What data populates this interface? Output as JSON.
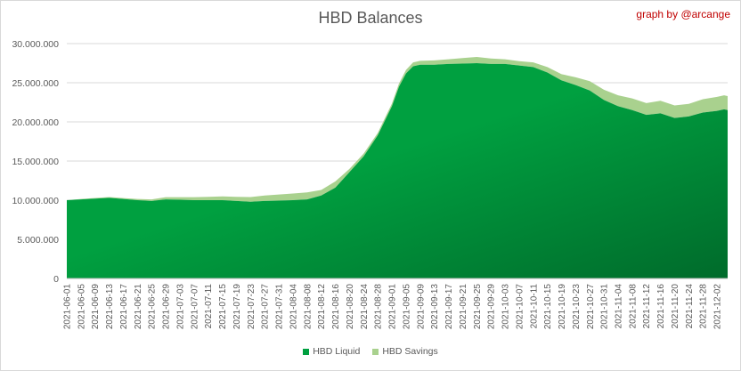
{
  "chart_data": {
    "type": "area",
    "stacked": true,
    "title": "HBD Balances",
    "watermark": "graph by @arcange",
    "ylim": [
      0,
      30000000
    ],
    "y_ticks": [
      0,
      5000000,
      10000000,
      15000000,
      20000000,
      25000000,
      30000000
    ],
    "y_tick_labels": [
      "0",
      "5.000.000",
      "10.000.000",
      "15.000.000",
      "20.000.000",
      "25.000.000",
      "30.000.000"
    ],
    "x_start": "2021-06-01",
    "x_end": "2021-12-05",
    "x_tick_labels": [
      "2021-06-01",
      "2021-06-05",
      "2021-06-09",
      "2021-06-13",
      "2021-06-17",
      "2021-06-21",
      "2021-06-25",
      "2021-06-29",
      "2021-07-03",
      "2021-07-07",
      "2021-07-11",
      "2021-07-15",
      "2021-07-19",
      "2021-07-23",
      "2021-07-27",
      "2021-07-31",
      "2021-08-04",
      "2021-08-08",
      "2021-08-12",
      "2021-08-16",
      "2021-08-20",
      "2021-08-24",
      "2021-08-28",
      "2021-09-01",
      "2021-09-05",
      "2021-09-09",
      "2021-09-13",
      "2021-09-17",
      "2021-09-21",
      "2021-09-25",
      "2021-09-29",
      "2021-10-03",
      "2021-10-07",
      "2021-10-11",
      "2021-10-15",
      "2021-10-19",
      "2021-10-23",
      "2021-10-27",
      "2021-10-31",
      "2021-11-04",
      "2021-11-08",
      "2021-11-12",
      "2021-11-16",
      "2021-11-20",
      "2021-11-24",
      "2021-11-28",
      "2021-12-02"
    ],
    "legend_position": "bottom",
    "grid": true,
    "series": [
      {
        "name": "HBD Liquid",
        "color": "#00a040",
        "color_dark": "#006b2b",
        "points": [
          [
            "2021-06-01",
            10000000
          ],
          [
            "2021-06-05",
            10100000
          ],
          [
            "2021-06-09",
            10200000
          ],
          [
            "2021-06-13",
            10300000
          ],
          [
            "2021-06-17",
            10150000
          ],
          [
            "2021-06-21",
            10000000
          ],
          [
            "2021-06-25",
            9900000
          ],
          [
            "2021-06-29",
            10100000
          ],
          [
            "2021-07-03",
            10050000
          ],
          [
            "2021-07-07",
            10000000
          ],
          [
            "2021-07-11",
            10000000
          ],
          [
            "2021-07-15",
            10000000
          ],
          [
            "2021-07-19",
            9900000
          ],
          [
            "2021-07-23",
            9800000
          ],
          [
            "2021-07-27",
            9900000
          ],
          [
            "2021-07-31",
            9950000
          ],
          [
            "2021-08-04",
            10000000
          ],
          [
            "2021-08-08",
            10100000
          ],
          [
            "2021-08-12",
            10600000
          ],
          [
            "2021-08-16",
            11600000
          ],
          [
            "2021-08-20",
            13600000
          ],
          [
            "2021-08-24",
            15600000
          ],
          [
            "2021-08-28",
            18300000
          ],
          [
            "2021-09-01",
            22000000
          ],
          [
            "2021-09-03",
            24500000
          ],
          [
            "2021-09-05",
            26200000
          ],
          [
            "2021-09-07",
            27100000
          ],
          [
            "2021-09-09",
            27300000
          ],
          [
            "2021-09-13",
            27300000
          ],
          [
            "2021-09-17",
            27400000
          ],
          [
            "2021-09-21",
            27450000
          ],
          [
            "2021-09-25",
            27500000
          ],
          [
            "2021-09-29",
            27400000
          ],
          [
            "2021-10-03",
            27400000
          ],
          [
            "2021-10-07",
            27200000
          ],
          [
            "2021-10-11",
            27000000
          ],
          [
            "2021-10-15",
            26300000
          ],
          [
            "2021-10-19",
            25300000
          ],
          [
            "2021-10-23",
            24700000
          ],
          [
            "2021-10-27",
            24000000
          ],
          [
            "2021-10-31",
            22800000
          ],
          [
            "2021-11-04",
            22000000
          ],
          [
            "2021-11-08",
            21500000
          ],
          [
            "2021-11-12",
            20900000
          ],
          [
            "2021-11-16",
            21100000
          ],
          [
            "2021-11-20",
            20500000
          ],
          [
            "2021-11-24",
            20700000
          ],
          [
            "2021-11-28",
            21200000
          ],
          [
            "2021-12-02",
            21400000
          ],
          [
            "2021-12-04",
            21600000
          ],
          [
            "2021-12-05",
            21500000
          ]
        ]
      },
      {
        "name": "HBD Savings",
        "color": "#a9d18e",
        "points": [
          [
            "2021-06-01",
            0
          ],
          [
            "2021-06-05",
            50000
          ],
          [
            "2021-06-09",
            80000
          ],
          [
            "2021-06-13",
            100000
          ],
          [
            "2021-06-17",
            120000
          ],
          [
            "2021-06-21",
            150000
          ],
          [
            "2021-06-25",
            200000
          ],
          [
            "2021-06-29",
            280000
          ],
          [
            "2021-07-03",
            330000
          ],
          [
            "2021-07-07",
            380000
          ],
          [
            "2021-07-11",
            430000
          ],
          [
            "2021-07-15",
            480000
          ],
          [
            "2021-07-19",
            530000
          ],
          [
            "2021-07-23",
            600000
          ],
          [
            "2021-07-27",
            700000
          ],
          [
            "2021-07-31",
            780000
          ],
          [
            "2021-08-04",
            850000
          ],
          [
            "2021-08-08",
            900000
          ],
          [
            "2021-08-12",
            700000
          ],
          [
            "2021-08-16",
            800000
          ],
          [
            "2021-08-20",
            400000
          ],
          [
            "2021-08-24",
            350000
          ],
          [
            "2021-08-28",
            300000
          ],
          [
            "2021-09-01",
            350000
          ],
          [
            "2021-09-03",
            400000
          ],
          [
            "2021-09-05",
            450000
          ],
          [
            "2021-09-07",
            500000
          ],
          [
            "2021-09-09",
            500000
          ],
          [
            "2021-09-13",
            550000
          ],
          [
            "2021-09-17",
            600000
          ],
          [
            "2021-09-21",
            700000
          ],
          [
            "2021-09-25",
            800000
          ],
          [
            "2021-09-29",
            700000
          ],
          [
            "2021-10-03",
            600000
          ],
          [
            "2021-10-07",
            550000
          ],
          [
            "2021-10-11",
            600000
          ],
          [
            "2021-10-15",
            700000
          ],
          [
            "2021-10-19",
            800000
          ],
          [
            "2021-10-23",
            1000000
          ],
          [
            "2021-10-27",
            1200000
          ],
          [
            "2021-10-31",
            1300000
          ],
          [
            "2021-11-04",
            1400000
          ],
          [
            "2021-11-08",
            1500000
          ],
          [
            "2021-11-12",
            1500000
          ],
          [
            "2021-11-16",
            1600000
          ],
          [
            "2021-11-20",
            1600000
          ],
          [
            "2021-11-24",
            1600000
          ],
          [
            "2021-11-28",
            1700000
          ],
          [
            "2021-12-02",
            1800000
          ],
          [
            "2021-12-04",
            1800000
          ],
          [
            "2021-12-05",
            1800000
          ]
        ]
      }
    ]
  }
}
